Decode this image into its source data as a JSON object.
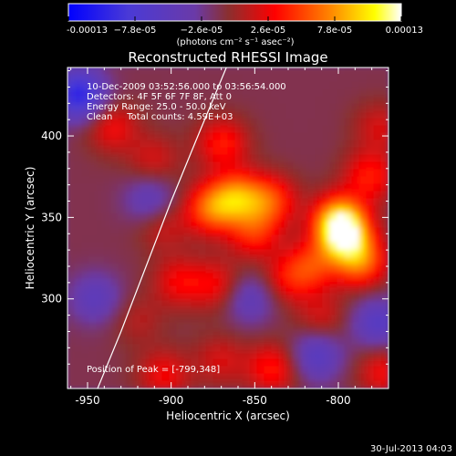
{
  "chart_data": {
    "type": "heatmap",
    "title": "Reconstructed RHESSI Image",
    "xlabel": "Heliocentric X (arcsec)",
    "ylabel": "Heliocentric Y (arcsec)",
    "xlim": [
      -962,
      -770
    ],
    "ylim": [
      245,
      442
    ],
    "x_ticks": [
      -950,
      -900,
      -850,
      -800
    ],
    "y_ticks": [
      300,
      350,
      400
    ],
    "x_tick_labels": [
      "-950",
      "-900",
      "-850",
      "-800"
    ],
    "y_tick_labels": [
      "300",
      "350",
      "400"
    ],
    "colorbar": {
      "range": [
        -0.00013,
        0.00013
      ],
      "tick_values": [
        -0.00013,
        -7.8e-05,
        -2.6e-05,
        2.6e-05,
        7.8e-05,
        0.00013
      ],
      "tick_labels": [
        "-0.00013",
        "−7.8e-05",
        "−2.6e-05",
        "2.6e-05",
        "7.8e-05",
        "0.00013"
      ],
      "units": "(photons cm⁻² s⁻¹ asec⁻²)",
      "colors": [
        "#0000ff",
        "#6a3aa8",
        "#8a2f2f",
        "#ff0000",
        "#ff8000",
        "#ffff00",
        "#ffffff"
      ]
    },
    "annotations": [
      "10-Dec-2009 03:52:56.000 to 03:56:54.000",
      "Detectors: 4F 5F 6F 7F 8F, Att 0",
      "Energy Range: 25.0 - 50.0 keV",
      "Clean     Total counts: 4.59E+03"
    ],
    "peak_label": "Position of Peak = [-799,348]",
    "peak": [
      -799,
      348
    ],
    "limb": [
      [
        -944,
        245
      ],
      [
        -930,
        280
      ],
      [
        -915,
        320
      ],
      [
        -900,
        360
      ],
      [
        -884,
        400
      ],
      [
        -867,
        442
      ]
    ],
    "sources": [
      {
        "x": -860,
        "y": 362,
        "v": 7.8e-05
      },
      {
        "x": -876,
        "y": 355,
        "v": 7e-05
      },
      {
        "x": -840,
        "y": 360,
        "v": 6e-05
      },
      {
        "x": -850,
        "y": 340,
        "v": 5e-05
      },
      {
        "x": -869,
        "y": 395,
        "v": 5e-05
      },
      {
        "x": -872,
        "y": 308,
        "v": 4e-05
      },
      {
        "x": -895,
        "y": 310,
        "v": 4e-05
      },
      {
        "x": -905,
        "y": 345,
        "v": 3e-05
      },
      {
        "x": -935,
        "y": 405,
        "v": 4e-05
      },
      {
        "x": -910,
        "y": 385,
        "v": 3e-05
      },
      {
        "x": -830,
        "y": 312,
        "v": 4e-05
      },
      {
        "x": -799,
        "y": 348,
        "v": 0.0001
      },
      {
        "x": -796,
        "y": 337,
        "v": 9e-05
      },
      {
        "x": -786,
        "y": 322,
        "v": 7e-05
      },
      {
        "x": -815,
        "y": 320,
        "v": 5e-05
      },
      {
        "x": -781,
        "y": 375,
        "v": 5e-05
      },
      {
        "x": -775,
        "y": 405,
        "v": 3e-05
      },
      {
        "x": -839,
        "y": 257,
        "v": 5e-05
      },
      {
        "x": -904,
        "y": 253,
        "v": 4e-05
      },
      {
        "x": -870,
        "y": 262,
        "v": 3e-05
      },
      {
        "x": -773,
        "y": 255,
        "v": 4e-05
      },
      {
        "x": -810,
        "y": 288,
        "v": 3e-05
      },
      {
        "x": -920,
        "y": 287,
        "v": 2e-05
      },
      {
        "x": -955,
        "y": 425,
        "v": -9e-05
      },
      {
        "x": -945,
        "y": 300,
        "v": -4e-05
      },
      {
        "x": -912,
        "y": 360,
        "v": -4e-05
      },
      {
        "x": -853,
        "y": 300,
        "v": -4e-05
      },
      {
        "x": -776,
        "y": 285,
        "v": -5e-05
      },
      {
        "x": -813,
        "y": 265,
        "v": -5e-05
      }
    ]
  },
  "footer": {
    "timestamp": "30-Jul-2013 04:03"
  }
}
